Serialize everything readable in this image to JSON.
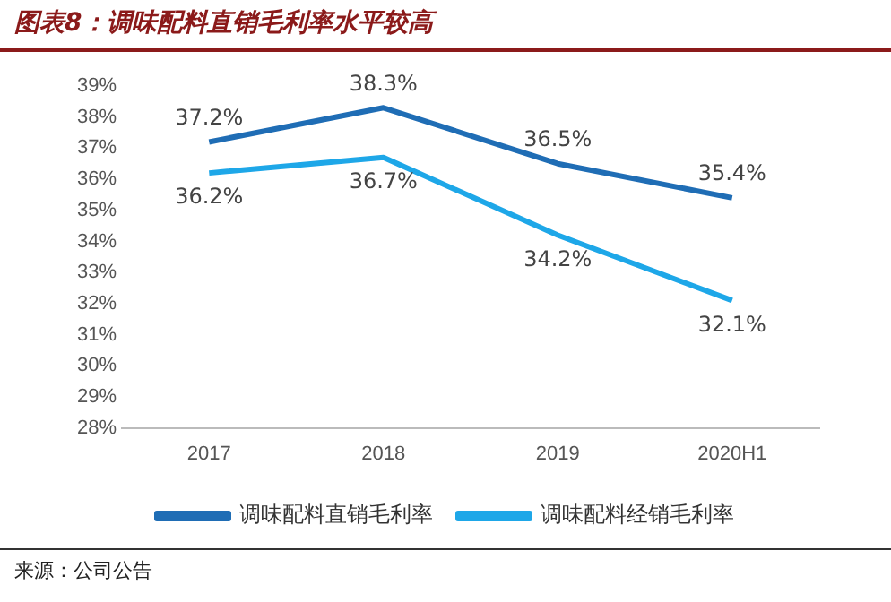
{
  "chart_data": {
    "type": "line",
    "title": "图表8：调味配料直销毛利率水平较高",
    "categories": [
      "2017",
      "2018",
      "2019",
      "2020H1"
    ],
    "series": [
      {
        "name": "调味配料直销毛利率",
        "color": "#1f6db5",
        "values": [
          37.2,
          38.3,
          36.5,
          35.4
        ],
        "value_labels": [
          "37.2%",
          "38.3%",
          "36.5%",
          "35.4%"
        ]
      },
      {
        "name": "调味配料经销毛利率",
        "color": "#1ea7e8",
        "values": [
          36.2,
          36.7,
          34.2,
          32.1
        ],
        "value_labels": [
          "36.2%",
          "36.7%",
          "34.2%",
          "32.1%"
        ]
      }
    ],
    "ylim": [
      28,
      39
    ],
    "yticks": [
      {
        "value": 28,
        "label": "28%"
      },
      {
        "value": 29,
        "label": "29%"
      },
      {
        "value": 30,
        "label": "30%"
      },
      {
        "value": 31,
        "label": "31%"
      },
      {
        "value": 32,
        "label": "32%"
      },
      {
        "value": 33,
        "label": "33%"
      },
      {
        "value": 34,
        "label": "34%"
      },
      {
        "value": 35,
        "label": "35%"
      },
      {
        "value": 36,
        "label": "36%"
      },
      {
        "value": 37,
        "label": "37%"
      },
      {
        "value": 38,
        "label": "38%"
      },
      {
        "value": 39,
        "label": "39%"
      }
    ],
    "grid": false,
    "legend": "bottom",
    "marker": "none",
    "line_style": "solid",
    "annotations": [
      "来源：公司公告"
    ]
  }
}
